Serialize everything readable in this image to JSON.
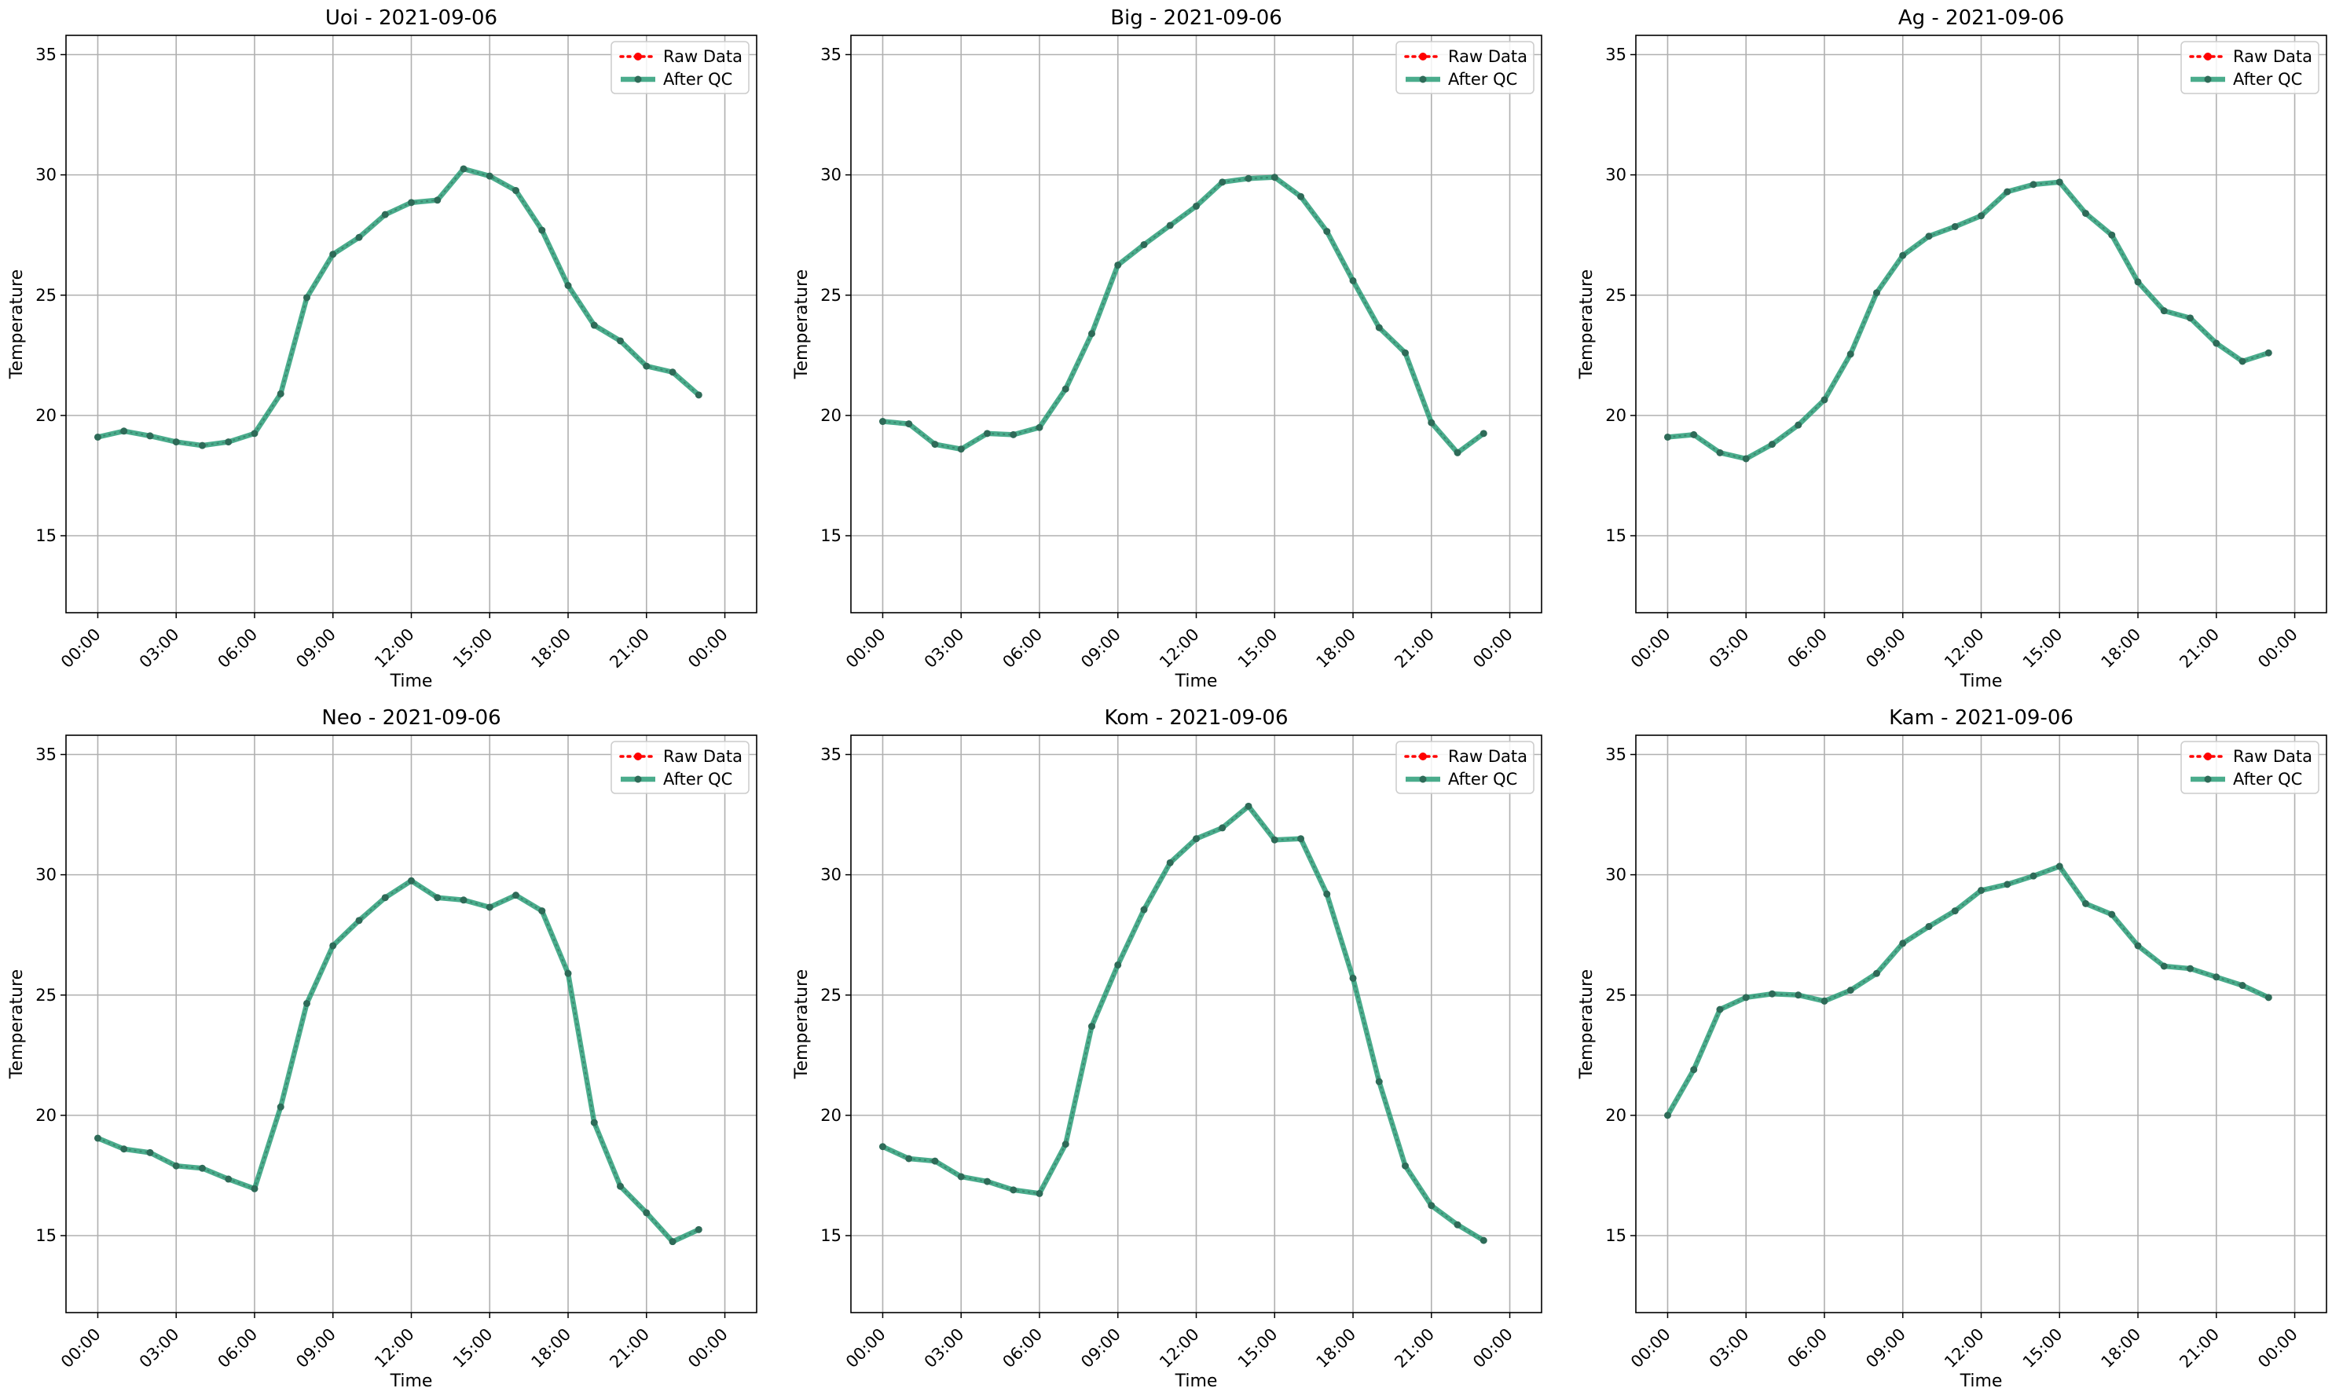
{
  "figure": {
    "colors": {
      "raw": "#ff0000",
      "after_qc": "#2a9d78",
      "after_qc_marker": "#2e6b58",
      "grid": "#b0b0b0"
    }
  },
  "chart_data": [
    {
      "type": "line",
      "title": "Uoi - 2021-09-06",
      "xlabel": "Time",
      "ylabel": "Temperature",
      "xlim": [
        "2021-09-05T22:47",
        "2021-09-07T01:13"
      ],
      "ylim": [
        11.8,
        35.8
      ],
      "x_ticks": [
        "00:00",
        "03:00",
        "06:00",
        "09:00",
        "12:00",
        "15:00",
        "18:00",
        "21:00",
        "00:00"
      ],
      "y_ticks": [
        15,
        20,
        25,
        30,
        35
      ],
      "grid": true,
      "legend": "top-right",
      "x": [
        "00:00",
        "01:00",
        "02:00",
        "03:00",
        "04:00",
        "05:00",
        "06:00",
        "07:00",
        "08:00",
        "09:00",
        "10:00",
        "11:00",
        "12:00",
        "13:00",
        "14:00",
        "15:00",
        "16:00",
        "17:00",
        "18:00",
        "19:00",
        "20:00",
        "21:00",
        "22:00",
        "23:00"
      ],
      "series": [
        {
          "name": "Raw Data",
          "values": [
            19.1,
            19.35,
            19.15,
            18.9,
            18.75,
            18.9,
            19.25,
            20.9,
            24.9,
            26.7,
            27.4,
            28.35,
            28.85,
            28.95,
            30.25,
            29.95,
            29.35,
            27.7,
            25.4,
            23.75,
            23.1,
            22.05,
            21.8,
            20.85
          ]
        },
        {
          "name": "After QC",
          "values": [
            19.1,
            19.35,
            19.15,
            18.9,
            18.75,
            18.9,
            19.25,
            20.9,
            24.9,
            26.7,
            27.4,
            28.35,
            28.85,
            28.95,
            30.25,
            29.95,
            29.35,
            27.7,
            25.4,
            23.75,
            23.1,
            22.05,
            21.8,
            20.85
          ]
        }
      ]
    },
    {
      "type": "line",
      "title": "Big - 2021-09-06",
      "xlabel": "Time",
      "ylabel": "Temperature",
      "xlim": [
        "2021-09-05T22:47",
        "2021-09-07T01:13"
      ],
      "ylim": [
        11.8,
        35.8
      ],
      "x_ticks": [
        "00:00",
        "03:00",
        "06:00",
        "09:00",
        "12:00",
        "15:00",
        "18:00",
        "21:00",
        "00:00"
      ],
      "y_ticks": [
        15,
        20,
        25,
        30,
        35
      ],
      "grid": true,
      "legend": "top-right",
      "x": [
        "00:00",
        "01:00",
        "02:00",
        "03:00",
        "04:00",
        "05:00",
        "06:00",
        "07:00",
        "08:00",
        "09:00",
        "10:00",
        "11:00",
        "12:00",
        "13:00",
        "14:00",
        "15:00",
        "16:00",
        "17:00",
        "18:00",
        "19:00",
        "20:00",
        "21:00",
        "22:00",
        "23:00"
      ],
      "series": [
        {
          "name": "Raw Data",
          "values": [
            19.75,
            19.65,
            18.8,
            18.6,
            19.25,
            19.2,
            19.5,
            21.1,
            23.4,
            26.25,
            27.1,
            27.9,
            28.7,
            29.7,
            29.85,
            29.9,
            29.1,
            27.65,
            25.6,
            23.65,
            22.6,
            19.7,
            18.45,
            19.25
          ]
        },
        {
          "name": "After QC",
          "values": [
            19.75,
            19.65,
            18.8,
            18.6,
            19.25,
            19.2,
            19.5,
            21.1,
            23.4,
            26.25,
            27.1,
            27.9,
            28.7,
            29.7,
            29.85,
            29.9,
            29.1,
            27.65,
            25.6,
            23.65,
            22.6,
            19.7,
            18.45,
            19.25
          ]
        }
      ]
    },
    {
      "type": "line",
      "title": "Ag - 2021-09-06",
      "xlabel": "Time",
      "ylabel": "Temperature",
      "xlim": [
        "2021-09-05T22:47",
        "2021-09-07T01:13"
      ],
      "ylim": [
        11.8,
        35.8
      ],
      "x_ticks": [
        "00:00",
        "03:00",
        "06:00",
        "09:00",
        "12:00",
        "15:00",
        "18:00",
        "21:00",
        "00:00"
      ],
      "y_ticks": [
        15,
        20,
        25,
        30,
        35
      ],
      "grid": true,
      "legend": "top-right",
      "x": [
        "00:00",
        "01:00",
        "02:00",
        "03:00",
        "04:00",
        "05:00",
        "06:00",
        "07:00",
        "08:00",
        "09:00",
        "10:00",
        "11:00",
        "12:00",
        "13:00",
        "14:00",
        "15:00",
        "16:00",
        "17:00",
        "18:00",
        "19:00",
        "20:00",
        "21:00",
        "22:00",
        "23:00"
      ],
      "series": [
        {
          "name": "Raw Data",
          "values": [
            19.1,
            19.2,
            18.45,
            18.2,
            18.8,
            19.6,
            20.65,
            22.55,
            25.1,
            26.65,
            27.45,
            27.85,
            28.3,
            29.3,
            29.6,
            29.7,
            28.4,
            27.5,
            25.55,
            24.35,
            24.05,
            23.0,
            22.25,
            22.6
          ]
        },
        {
          "name": "After QC",
          "values": [
            19.1,
            19.2,
            18.45,
            18.2,
            18.8,
            19.6,
            20.65,
            22.55,
            25.1,
            26.65,
            27.45,
            27.85,
            28.3,
            29.3,
            29.6,
            29.7,
            28.4,
            27.5,
            25.55,
            24.35,
            24.05,
            23.0,
            22.25,
            22.6
          ]
        }
      ]
    },
    {
      "type": "line",
      "title": "Neo - 2021-09-06",
      "xlabel": "Time",
      "ylabel": "Temperature",
      "xlim": [
        "2021-09-05T22:47",
        "2021-09-07T01:13"
      ],
      "ylim": [
        11.8,
        35.8
      ],
      "x_ticks": [
        "00:00",
        "03:00",
        "06:00",
        "09:00",
        "12:00",
        "15:00",
        "18:00",
        "21:00",
        "00:00"
      ],
      "y_ticks": [
        15,
        20,
        25,
        30,
        35
      ],
      "grid": true,
      "legend": "top-right",
      "x": [
        "00:00",
        "01:00",
        "02:00",
        "03:00",
        "04:00",
        "05:00",
        "06:00",
        "07:00",
        "08:00",
        "09:00",
        "10:00",
        "11:00",
        "12:00",
        "13:00",
        "14:00",
        "15:00",
        "16:00",
        "17:00",
        "18:00",
        "19:00",
        "20:00",
        "21:00",
        "22:00",
        "23:00"
      ],
      "series": [
        {
          "name": "Raw Data",
          "values": [
            19.05,
            18.6,
            18.45,
            17.9,
            17.8,
            17.35,
            16.95,
            20.35,
            24.65,
            27.05,
            28.1,
            29.05,
            29.75,
            29.05,
            28.95,
            28.65,
            29.15,
            28.5,
            25.9,
            19.7,
            17.05,
            15.95,
            14.75,
            15.25
          ]
        },
        {
          "name": "After QC",
          "values": [
            19.05,
            18.6,
            18.45,
            17.9,
            17.8,
            17.35,
            16.95,
            20.35,
            24.65,
            27.05,
            28.1,
            29.05,
            29.75,
            29.05,
            28.95,
            28.65,
            29.15,
            28.5,
            25.9,
            19.7,
            17.05,
            15.95,
            14.75,
            15.25
          ]
        }
      ]
    },
    {
      "type": "line",
      "title": "Kom - 2021-09-06",
      "xlabel": "Time",
      "ylabel": "Temperature",
      "xlim": [
        "2021-09-05T22:47",
        "2021-09-07T01:13"
      ],
      "ylim": [
        11.8,
        35.8
      ],
      "x_ticks": [
        "00:00",
        "03:00",
        "06:00",
        "09:00",
        "12:00",
        "15:00",
        "18:00",
        "21:00",
        "00:00"
      ],
      "y_ticks": [
        15,
        20,
        25,
        30,
        35
      ],
      "grid": true,
      "legend": "top-right",
      "x": [
        "00:00",
        "01:00",
        "02:00",
        "03:00",
        "04:00",
        "05:00",
        "06:00",
        "07:00",
        "08:00",
        "09:00",
        "10:00",
        "11:00",
        "12:00",
        "13:00",
        "14:00",
        "15:00",
        "16:00",
        "17:00",
        "18:00",
        "19:00",
        "20:00",
        "21:00",
        "22:00",
        "23:00"
      ],
      "series": [
        {
          "name": "Raw Data",
          "values": [
            18.7,
            18.2,
            18.1,
            17.45,
            17.25,
            16.9,
            16.75,
            18.8,
            23.7,
            26.25,
            28.55,
            30.5,
            31.5,
            31.95,
            32.85,
            31.45,
            31.5,
            29.2,
            25.7,
            21.4,
            17.9,
            16.25,
            15.45,
            14.8
          ]
        },
        {
          "name": "After QC",
          "values": [
            18.7,
            18.2,
            18.1,
            17.45,
            17.25,
            16.9,
            16.75,
            18.8,
            23.7,
            26.25,
            28.55,
            30.5,
            31.5,
            31.95,
            32.85,
            31.45,
            31.5,
            29.2,
            25.7,
            21.4,
            17.9,
            16.25,
            15.45,
            14.8
          ]
        }
      ]
    },
    {
      "type": "line",
      "title": "Kam - 2021-09-06",
      "xlabel": "Time",
      "ylabel": "Temperature",
      "xlim": [
        "2021-09-05T22:47",
        "2021-09-07T01:13"
      ],
      "ylim": [
        11.8,
        35.8
      ],
      "x_ticks": [
        "00:00",
        "03:00",
        "06:00",
        "09:00",
        "12:00",
        "15:00",
        "18:00",
        "21:00",
        "00:00"
      ],
      "y_ticks": [
        15,
        20,
        25,
        30,
        35
      ],
      "grid": true,
      "legend": "top-right",
      "x": [
        "00:00",
        "01:00",
        "02:00",
        "03:00",
        "04:00",
        "05:00",
        "06:00",
        "07:00",
        "08:00",
        "09:00",
        "10:00",
        "11:00",
        "12:00",
        "13:00",
        "14:00",
        "15:00",
        "16:00",
        "17:00",
        "18:00",
        "19:00",
        "20:00",
        "21:00",
        "22:00",
        "23:00"
      ],
      "series": [
        {
          "name": "Raw Data",
          "values": [
            20.0,
            21.9,
            24.4,
            24.9,
            25.05,
            25.0,
            24.75,
            25.2,
            25.9,
            27.15,
            27.85,
            28.5,
            29.35,
            29.6,
            29.95,
            30.35,
            28.8,
            28.35,
            27.05,
            26.2,
            26.1,
            25.75,
            25.4,
            24.9
          ]
        },
        {
          "name": "After QC",
          "values": [
            20.0,
            21.9,
            24.4,
            24.9,
            25.05,
            25.0,
            24.75,
            25.2,
            25.9,
            27.15,
            27.85,
            28.5,
            29.35,
            29.6,
            29.95,
            30.35,
            28.8,
            28.35,
            27.05,
            26.2,
            26.1,
            25.75,
            25.4,
            24.9
          ]
        }
      ]
    }
  ]
}
